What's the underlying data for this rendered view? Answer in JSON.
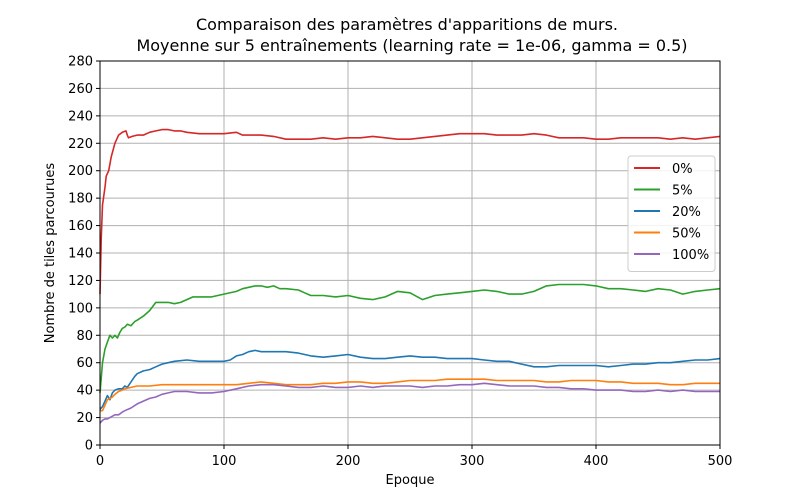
{
  "chart_data": {
    "type": "line",
    "title": "Comparaison des paramètres d'apparitions de murs.",
    "subtitle": "Moyenne sur 5 entraînements (learning rate = 1e-06, gamma = 0.5)",
    "xlabel": "Epoque",
    "ylabel": "Nombre de tiles parcourues",
    "xlim": [
      0,
      500
    ],
    "ylim": [
      0,
      280
    ],
    "xticks": [
      0,
      100,
      200,
      300,
      400,
      500
    ],
    "yticks": [
      0,
      20,
      40,
      60,
      80,
      100,
      120,
      140,
      160,
      180,
      200,
      220,
      240,
      260,
      280
    ],
    "grid": true,
    "legend_position": "right",
    "series": [
      {
        "name": "0%",
        "color": "#d62728",
        "points": [
          [
            0,
            110
          ],
          [
            1,
            150
          ],
          [
            2,
            175
          ],
          [
            4,
            188
          ],
          [
            5,
            196
          ],
          [
            7,
            200
          ],
          [
            9,
            210
          ],
          [
            12,
            220
          ],
          [
            15,
            226
          ],
          [
            18,
            228
          ],
          [
            21,
            229
          ],
          [
            22,
            226
          ],
          [
            23,
            224
          ],
          [
            26,
            225
          ],
          [
            30,
            226
          ],
          [
            35,
            226
          ],
          [
            40,
            228
          ],
          [
            45,
            229
          ],
          [
            50,
            230
          ],
          [
            55,
            230
          ],
          [
            60,
            229
          ],
          [
            65,
            229
          ],
          [
            70,
            228
          ],
          [
            80,
            227
          ],
          [
            90,
            227
          ],
          [
            100,
            227
          ],
          [
            110,
            228
          ],
          [
            115,
            226
          ],
          [
            120,
            226
          ],
          [
            130,
            226
          ],
          [
            140,
            225
          ],
          [
            150,
            223
          ],
          [
            160,
            223
          ],
          [
            170,
            223
          ],
          [
            180,
            224
          ],
          [
            190,
            223
          ],
          [
            200,
            224
          ],
          [
            210,
            224
          ],
          [
            220,
            225
          ],
          [
            230,
            224
          ],
          [
            240,
            223
          ],
          [
            250,
            223
          ],
          [
            260,
            224
          ],
          [
            270,
            225
          ],
          [
            280,
            226
          ],
          [
            290,
            227
          ],
          [
            300,
            227
          ],
          [
            310,
            227
          ],
          [
            320,
            226
          ],
          [
            330,
            226
          ],
          [
            340,
            226
          ],
          [
            350,
            227
          ],
          [
            360,
            226
          ],
          [
            370,
            224
          ],
          [
            380,
            224
          ],
          [
            390,
            224
          ],
          [
            400,
            223
          ],
          [
            410,
            223
          ],
          [
            420,
            224
          ],
          [
            430,
            224
          ],
          [
            440,
            224
          ],
          [
            450,
            224
          ],
          [
            460,
            223
          ],
          [
            470,
            224
          ],
          [
            480,
            223
          ],
          [
            490,
            224
          ],
          [
            500,
            225
          ]
        ]
      },
      {
        "name": "5%",
        "color": "#2ca02c",
        "points": [
          [
            0,
            38
          ],
          [
            2,
            60
          ],
          [
            4,
            70
          ],
          [
            6,
            75
          ],
          [
            8,
            80
          ],
          [
            10,
            78
          ],
          [
            12,
            80
          ],
          [
            14,
            78
          ],
          [
            16,
            82
          ],
          [
            18,
            85
          ],
          [
            20,
            86
          ],
          [
            22,
            88
          ],
          [
            25,
            87
          ],
          [
            28,
            90
          ],
          [
            30,
            91
          ],
          [
            35,
            94
          ],
          [
            40,
            98
          ],
          [
            45,
            104
          ],
          [
            50,
            104
          ],
          [
            55,
            104
          ],
          [
            60,
            103
          ],
          [
            65,
            104
          ],
          [
            70,
            106
          ],
          [
            75,
            108
          ],
          [
            80,
            108
          ],
          [
            90,
            108
          ],
          [
            100,
            110
          ],
          [
            110,
            112
          ],
          [
            115,
            114
          ],
          [
            120,
            115
          ],
          [
            125,
            116
          ],
          [
            130,
            116
          ],
          [
            135,
            115
          ],
          [
            140,
            116
          ],
          [
            145,
            114
          ],
          [
            150,
            114
          ],
          [
            160,
            113
          ],
          [
            165,
            111
          ],
          [
            170,
            109
          ],
          [
            180,
            109
          ],
          [
            190,
            108
          ],
          [
            200,
            109
          ],
          [
            210,
            107
          ],
          [
            220,
            106
          ],
          [
            230,
            108
          ],
          [
            240,
            112
          ],
          [
            250,
            111
          ],
          [
            260,
            106
          ],
          [
            270,
            109
          ],
          [
            280,
            110
          ],
          [
            290,
            111
          ],
          [
            300,
            112
          ],
          [
            310,
            113
          ],
          [
            320,
            112
          ],
          [
            330,
            110
          ],
          [
            340,
            110
          ],
          [
            350,
            112
          ],
          [
            360,
            116
          ],
          [
            370,
            117
          ],
          [
            380,
            117
          ],
          [
            390,
            117
          ],
          [
            400,
            116
          ],
          [
            410,
            114
          ],
          [
            420,
            114
          ],
          [
            430,
            113
          ],
          [
            440,
            112
          ],
          [
            450,
            114
          ],
          [
            460,
            113
          ],
          [
            470,
            110
          ],
          [
            480,
            112
          ],
          [
            490,
            113
          ],
          [
            500,
            114
          ]
        ]
      },
      {
        "name": "20%",
        "color": "#1f77b4",
        "points": [
          [
            0,
            26
          ],
          [
            2,
            28
          ],
          [
            4,
            32
          ],
          [
            6,
            36
          ],
          [
            8,
            33
          ],
          [
            10,
            38
          ],
          [
            12,
            40
          ],
          [
            15,
            41
          ],
          [
            18,
            41
          ],
          [
            20,
            43
          ],
          [
            22,
            42
          ],
          [
            25,
            46
          ],
          [
            28,
            50
          ],
          [
            30,
            52
          ],
          [
            35,
            54
          ],
          [
            40,
            55
          ],
          [
            45,
            57
          ],
          [
            50,
            59
          ],
          [
            55,
            60
          ],
          [
            60,
            61
          ],
          [
            70,
            62
          ],
          [
            80,
            61
          ],
          [
            90,
            61
          ],
          [
            100,
            61
          ],
          [
            105,
            62
          ],
          [
            110,
            65
          ],
          [
            115,
            66
          ],
          [
            120,
            68
          ],
          [
            125,
            69
          ],
          [
            130,
            68
          ],
          [
            140,
            68
          ],
          [
            150,
            68
          ],
          [
            160,
            67
          ],
          [
            170,
            65
          ],
          [
            180,
            64
          ],
          [
            190,
            65
          ],
          [
            200,
            66
          ],
          [
            210,
            64
          ],
          [
            220,
            63
          ],
          [
            230,
            63
          ],
          [
            240,
            64
          ],
          [
            250,
            65
          ],
          [
            260,
            64
          ],
          [
            270,
            64
          ],
          [
            280,
            63
          ],
          [
            290,
            63
          ],
          [
            300,
            63
          ],
          [
            310,
            62
          ],
          [
            320,
            61
          ],
          [
            330,
            61
          ],
          [
            340,
            59
          ],
          [
            350,
            57
          ],
          [
            360,
            57
          ],
          [
            370,
            58
          ],
          [
            380,
            58
          ],
          [
            390,
            58
          ],
          [
            400,
            58
          ],
          [
            410,
            57
          ],
          [
            420,
            58
          ],
          [
            430,
            59
          ],
          [
            440,
            59
          ],
          [
            450,
            60
          ],
          [
            460,
            60
          ],
          [
            470,
            61
          ],
          [
            480,
            62
          ],
          [
            490,
            62
          ],
          [
            500,
            63
          ]
        ]
      },
      {
        "name": "50%",
        "color": "#ff7f0e",
        "points": [
          [
            0,
            25
          ],
          [
            2,
            25
          ],
          [
            4,
            29
          ],
          [
            6,
            33
          ],
          [
            8,
            34
          ],
          [
            10,
            35
          ],
          [
            12,
            37
          ],
          [
            15,
            39
          ],
          [
            18,
            40
          ],
          [
            20,
            41
          ],
          [
            25,
            42
          ],
          [
            30,
            43
          ],
          [
            40,
            43
          ],
          [
            50,
            44
          ],
          [
            60,
            44
          ],
          [
            70,
            44
          ],
          [
            80,
            44
          ],
          [
            90,
            44
          ],
          [
            100,
            44
          ],
          [
            110,
            44
          ],
          [
            120,
            45
          ],
          [
            130,
            46
          ],
          [
            140,
            45
          ],
          [
            150,
            44
          ],
          [
            160,
            44
          ],
          [
            170,
            44
          ],
          [
            180,
            45
          ],
          [
            190,
            45
          ],
          [
            200,
            46
          ],
          [
            210,
            46
          ],
          [
            220,
            45
          ],
          [
            230,
            45
          ],
          [
            240,
            46
          ],
          [
            250,
            47
          ],
          [
            260,
            47
          ],
          [
            270,
            47
          ],
          [
            280,
            48
          ],
          [
            290,
            48
          ],
          [
            300,
            48
          ],
          [
            310,
            48
          ],
          [
            320,
            47
          ],
          [
            330,
            47
          ],
          [
            340,
            47
          ],
          [
            350,
            47
          ],
          [
            360,
            46
          ],
          [
            370,
            46
          ],
          [
            380,
            47
          ],
          [
            390,
            47
          ],
          [
            400,
            47
          ],
          [
            410,
            46
          ],
          [
            420,
            46
          ],
          [
            430,
            45
          ],
          [
            440,
            45
          ],
          [
            450,
            45
          ],
          [
            460,
            44
          ],
          [
            470,
            44
          ],
          [
            480,
            45
          ],
          [
            490,
            45
          ],
          [
            500,
            45
          ]
        ]
      },
      {
        "name": "100%",
        "color": "#9467bd",
        "points": [
          [
            0,
            16
          ],
          [
            2,
            18
          ],
          [
            4,
            19
          ],
          [
            6,
            19
          ],
          [
            8,
            20
          ],
          [
            10,
            21
          ],
          [
            12,
            22
          ],
          [
            15,
            22
          ],
          [
            18,
            24
          ],
          [
            20,
            25
          ],
          [
            25,
            27
          ],
          [
            30,
            30
          ],
          [
            35,
            32
          ],
          [
            40,
            34
          ],
          [
            45,
            35
          ],
          [
            50,
            37
          ],
          [
            55,
            38
          ],
          [
            60,
            39
          ],
          [
            70,
            39
          ],
          [
            80,
            38
          ],
          [
            90,
            38
          ],
          [
            100,
            39
          ],
          [
            110,
            41
          ],
          [
            120,
            43
          ],
          [
            130,
            44
          ],
          [
            140,
            44
          ],
          [
            150,
            43
          ],
          [
            160,
            42
          ],
          [
            170,
            42
          ],
          [
            180,
            43
          ],
          [
            190,
            42
          ],
          [
            200,
            42
          ],
          [
            210,
            43
          ],
          [
            220,
            42
          ],
          [
            230,
            43
          ],
          [
            240,
            43
          ],
          [
            250,
            43
          ],
          [
            260,
            42
          ],
          [
            270,
            43
          ],
          [
            280,
            43
          ],
          [
            290,
            44
          ],
          [
            300,
            44
          ],
          [
            310,
            45
          ],
          [
            320,
            44
          ],
          [
            330,
            43
          ],
          [
            340,
            43
          ],
          [
            350,
            43
          ],
          [
            360,
            42
          ],
          [
            370,
            42
          ],
          [
            380,
            41
          ],
          [
            390,
            41
          ],
          [
            400,
            40
          ],
          [
            410,
            40
          ],
          [
            420,
            40
          ],
          [
            430,
            39
          ],
          [
            440,
            39
          ],
          [
            450,
            40
          ],
          [
            460,
            39
          ],
          [
            470,
            40
          ],
          [
            480,
            39
          ],
          [
            490,
            39
          ],
          [
            500,
            39
          ]
        ]
      }
    ]
  }
}
